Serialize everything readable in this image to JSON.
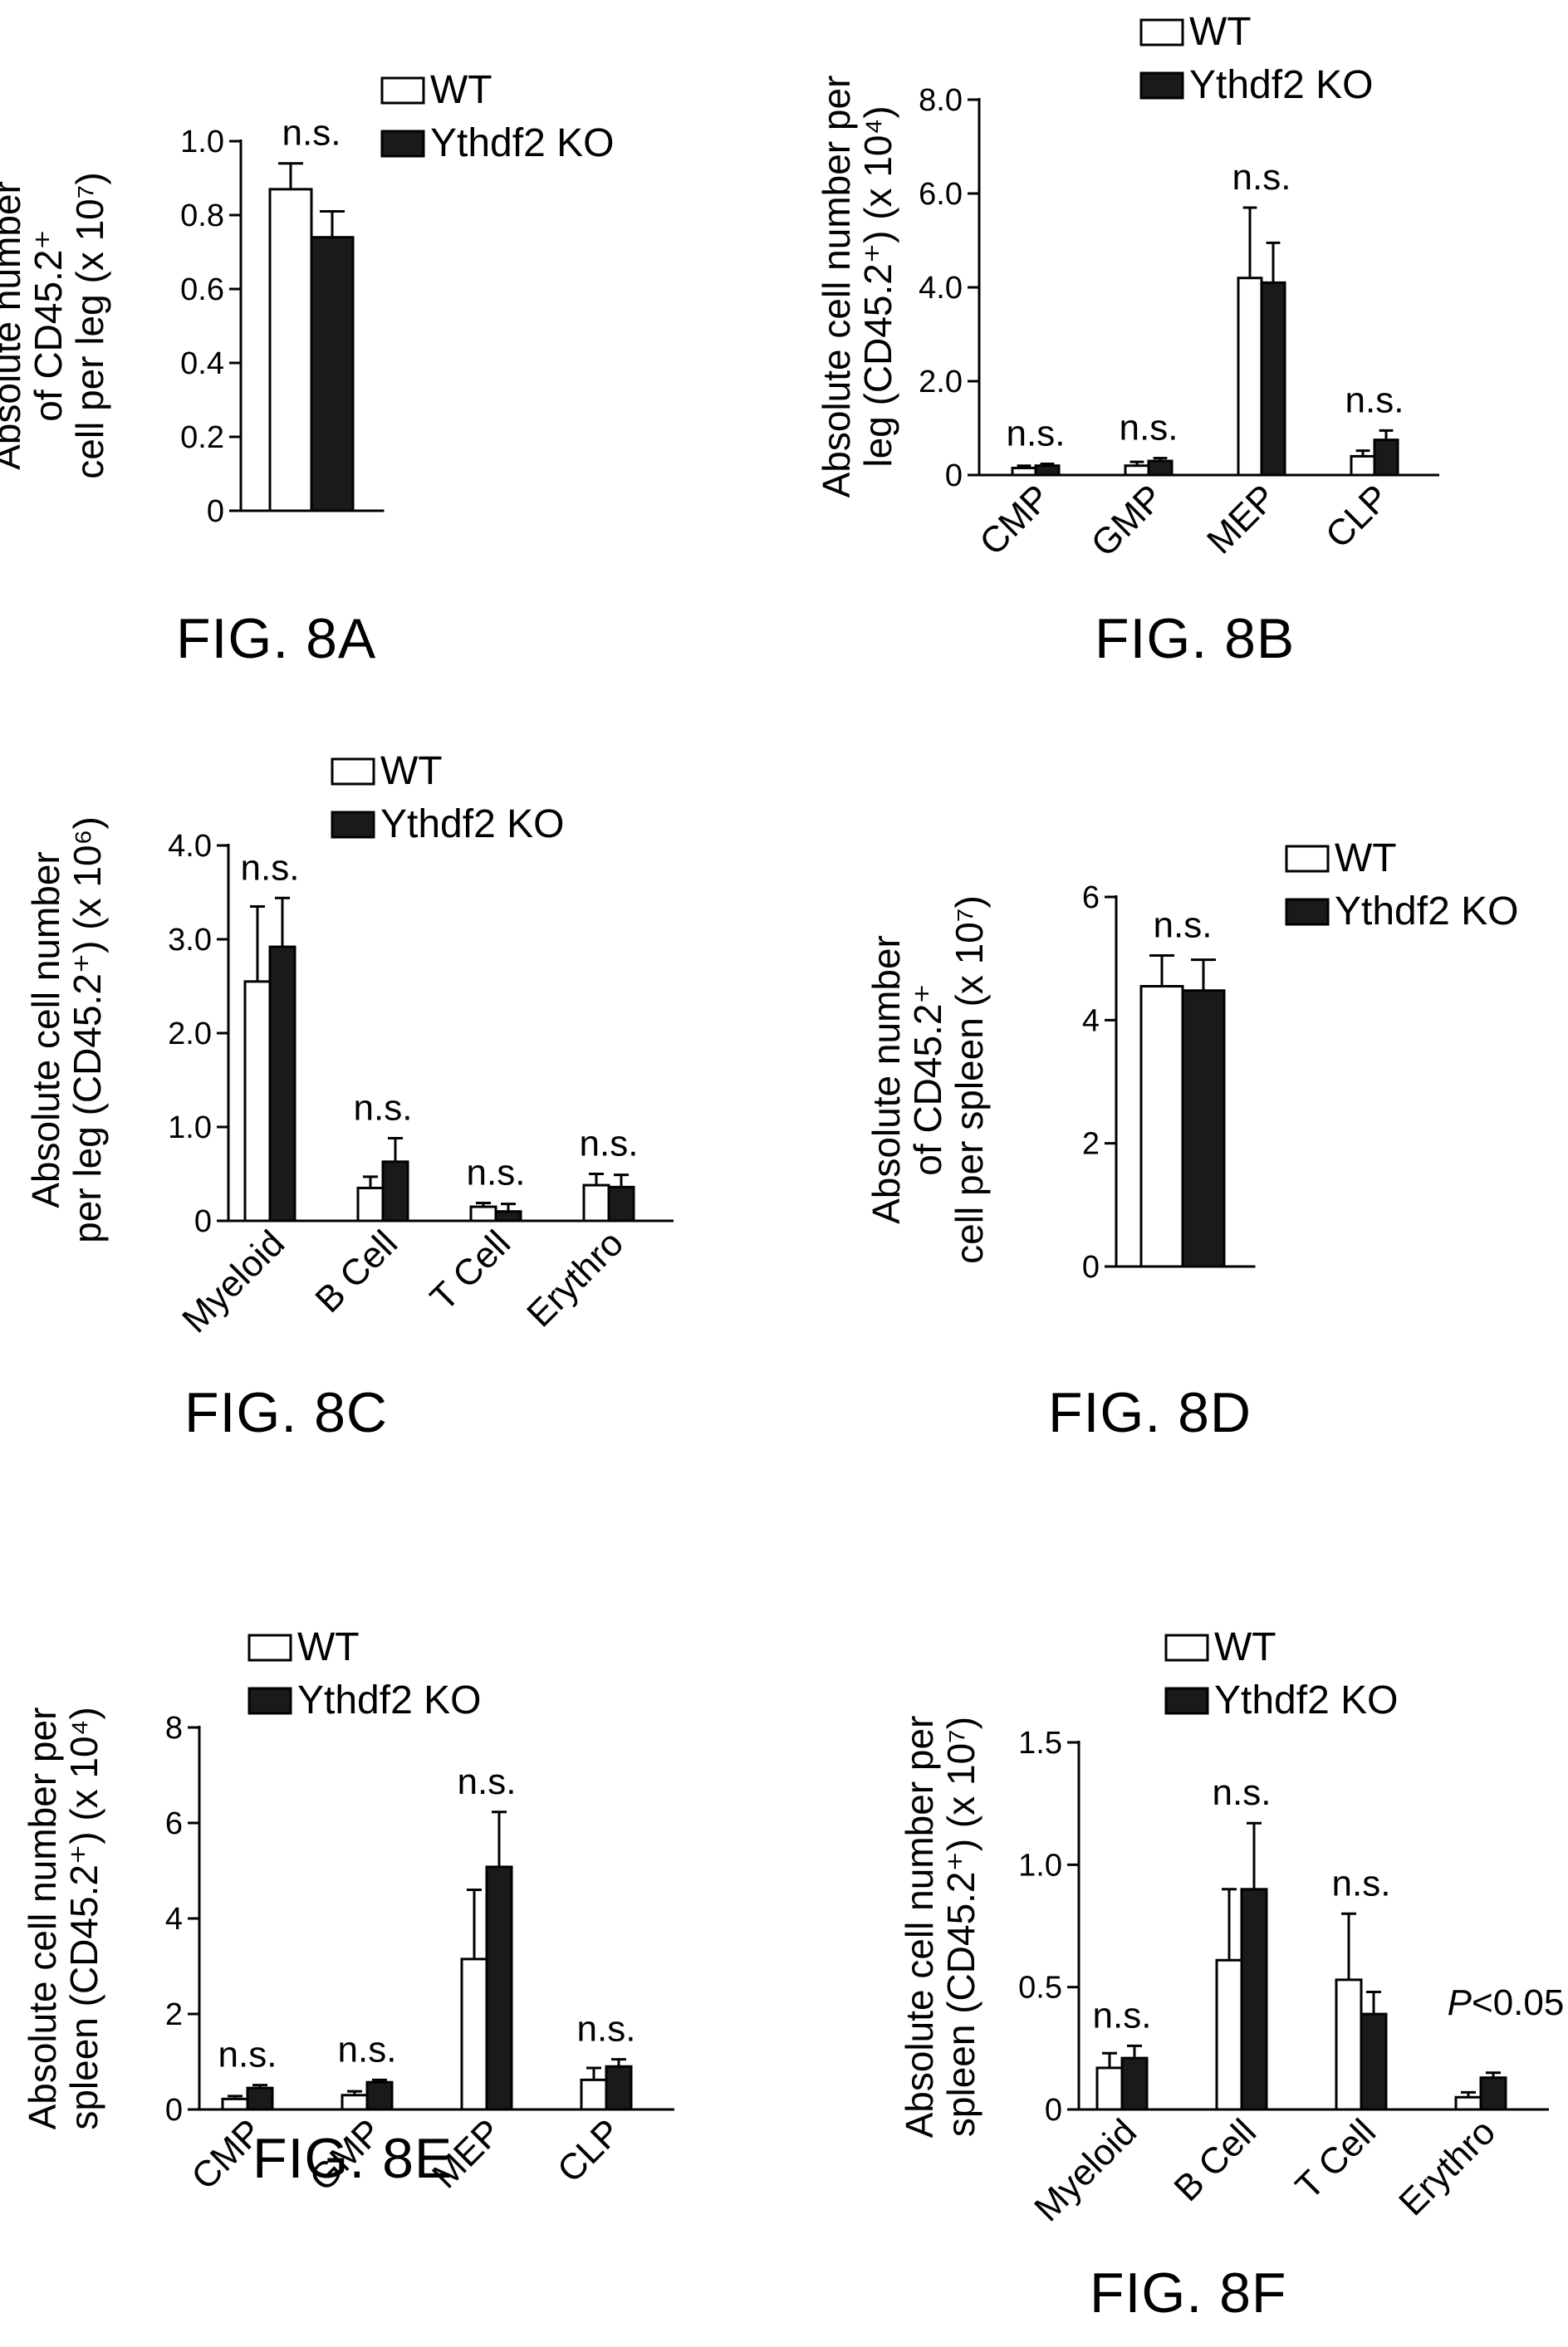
{
  "legend": {
    "wt": "WT",
    "ko": "Ythdf2 KO"
  },
  "colors": {
    "wt_fill": "#ffffff",
    "ko_fill": "#1a1a1a",
    "stroke": "#000000"
  },
  "chart_data": [
    {
      "id": "8A",
      "type": "bar",
      "fig_label": "FIG. 8A",
      "ylabel_lines": [
        "Absolute number",
        "of CD45.2⁺",
        "cell per leg  (x 10⁷)"
      ],
      "ylim": [
        0,
        1.0
      ],
      "yticks": [
        "0",
        "0.2",
        "0.4",
        "0.6",
        "0.8",
        "1.0"
      ],
      "ytick_values": [
        0,
        0.2,
        0.4,
        0.6,
        0.8,
        1.0
      ],
      "categories": [
        ""
      ],
      "series": [
        {
          "name": "WT",
          "values": [
            0.87
          ],
          "errors": [
            0.07
          ]
        },
        {
          "name": "Ythdf2 KO",
          "values": [
            0.74
          ],
          "errors": [
            0.07
          ]
        }
      ],
      "annotations": [
        "n.s."
      ]
    },
    {
      "id": "8B",
      "type": "bar",
      "fig_label": "FIG. 8B",
      "ylabel_lines": [
        "Absolute cell number per",
        "leg (CD45.2⁺) (x 10⁴)"
      ],
      "ylim": [
        0,
        8.0
      ],
      "yticks": [
        "0",
        "2.0",
        "4.0",
        "6.0",
        "8.0"
      ],
      "ytick_values": [
        0,
        2,
        4,
        6,
        8
      ],
      "categories": [
        "CMP",
        "GMP",
        "MEP",
        "CLP"
      ],
      "series": [
        {
          "name": "WT",
          "values": [
            0.15,
            0.2,
            4.2,
            0.4
          ],
          "errors": [
            0.05,
            0.08,
            1.5,
            0.12
          ]
        },
        {
          "name": "Ythdf2 KO",
          "values": [
            0.2,
            0.3,
            4.1,
            0.75
          ],
          "errors": [
            0.04,
            0.06,
            0.85,
            0.2
          ]
        }
      ],
      "annotations": [
        "n.s.",
        "n.s.",
        "n.s.",
        "n.s."
      ]
    },
    {
      "id": "8C",
      "type": "bar",
      "fig_label": "FIG. 8C",
      "ylabel_lines": [
        "Absolute cell number",
        "per leg (CD45.2⁺) (x 10⁶)"
      ],
      "ylim": [
        0,
        4.0
      ],
      "yticks": [
        "0",
        "1.0",
        "2.0",
        "3.0",
        "4.0"
      ],
      "ytick_values": [
        0,
        1,
        2,
        3,
        4
      ],
      "categories": [
        "Myeloid",
        "B Cell",
        "T Cell",
        "Erythro"
      ],
      "series": [
        {
          "name": "WT",
          "values": [
            2.55,
            0.35,
            0.15,
            0.38
          ],
          "errors": [
            0.8,
            0.12,
            0.04,
            0.12
          ]
        },
        {
          "name": "Ythdf2 KO",
          "values": [
            2.92,
            0.63,
            0.1,
            0.36
          ],
          "errors": [
            0.52,
            0.25,
            0.08,
            0.13
          ]
        }
      ],
      "annotations": [
        "n.s.",
        "n.s.",
        "n.s.",
        "n.s."
      ]
    },
    {
      "id": "8D",
      "type": "bar",
      "fig_label": "FIG. 8D",
      "ylabel_lines": [
        "Absolute number",
        "of CD45.2⁺",
        "cell per spleen (x 10⁷)"
      ],
      "ylim": [
        0,
        6
      ],
      "yticks": [
        "0",
        "2",
        "4",
        "6"
      ],
      "ytick_values": [
        0,
        2,
        4,
        6
      ],
      "categories": [
        ""
      ],
      "series": [
        {
          "name": "WT",
          "values": [
            4.55
          ],
          "errors": [
            0.5
          ]
        },
        {
          "name": "Ythdf2 KO",
          "values": [
            4.48
          ],
          "errors": [
            0.5
          ]
        }
      ],
      "annotations": [
        "n.s."
      ]
    },
    {
      "id": "8E",
      "type": "bar",
      "fig_label": "FIG. 8E",
      "ylabel_lines": [
        "Absolute cell number per",
        "spleen (CD45.2⁺) (x 10⁴)"
      ],
      "ylim": [
        0,
        8
      ],
      "yticks": [
        "0",
        "2",
        "4",
        "6",
        "8"
      ],
      "ytick_values": [
        0,
        2,
        4,
        6,
        8
      ],
      "categories": [
        "CMP",
        "GMP",
        "MEP",
        "CLP"
      ],
      "series": [
        {
          "name": "WT",
          "values": [
            0.22,
            0.3,
            3.15,
            0.62
          ],
          "errors": [
            0.06,
            0.08,
            1.45,
            0.25
          ]
        },
        {
          "name": "Ythdf2 KO",
          "values": [
            0.45,
            0.57,
            5.08,
            0.9
          ],
          "errors": [
            0.06,
            0.05,
            1.15,
            0.15
          ]
        }
      ],
      "annotations": [
        "n.s.",
        "n.s.",
        "n.s.",
        "n.s."
      ]
    },
    {
      "id": "8F",
      "type": "bar",
      "fig_label": "FIG. 8F",
      "ylabel_lines": [
        "Absolute cell number per",
        "spleen (CD45.2⁺) (x 10⁷)"
      ],
      "ylim": [
        0,
        1.5
      ],
      "yticks": [
        "0",
        "0.5",
        "1.0",
        "1.5"
      ],
      "ytick_values": [
        0,
        0.5,
        1.0,
        1.5
      ],
      "categories": [
        "Myeloid",
        "B Cell",
        "T Cell",
        "Erythro"
      ],
      "series": [
        {
          "name": "WT",
          "values": [
            0.17,
            0.61,
            0.53,
            0.05
          ],
          "errors": [
            0.06,
            0.29,
            0.27,
            0.02
          ]
        },
        {
          "name": "Ythdf2 KO",
          "values": [
            0.21,
            0.9,
            0.39,
            0.13
          ],
          "errors": [
            0.05,
            0.27,
            0.09,
            0.02
          ]
        }
      ],
      "annotations": [
        "n.s.",
        "n.s.",
        "n.s.",
        "P<0.05"
      ]
    }
  ]
}
